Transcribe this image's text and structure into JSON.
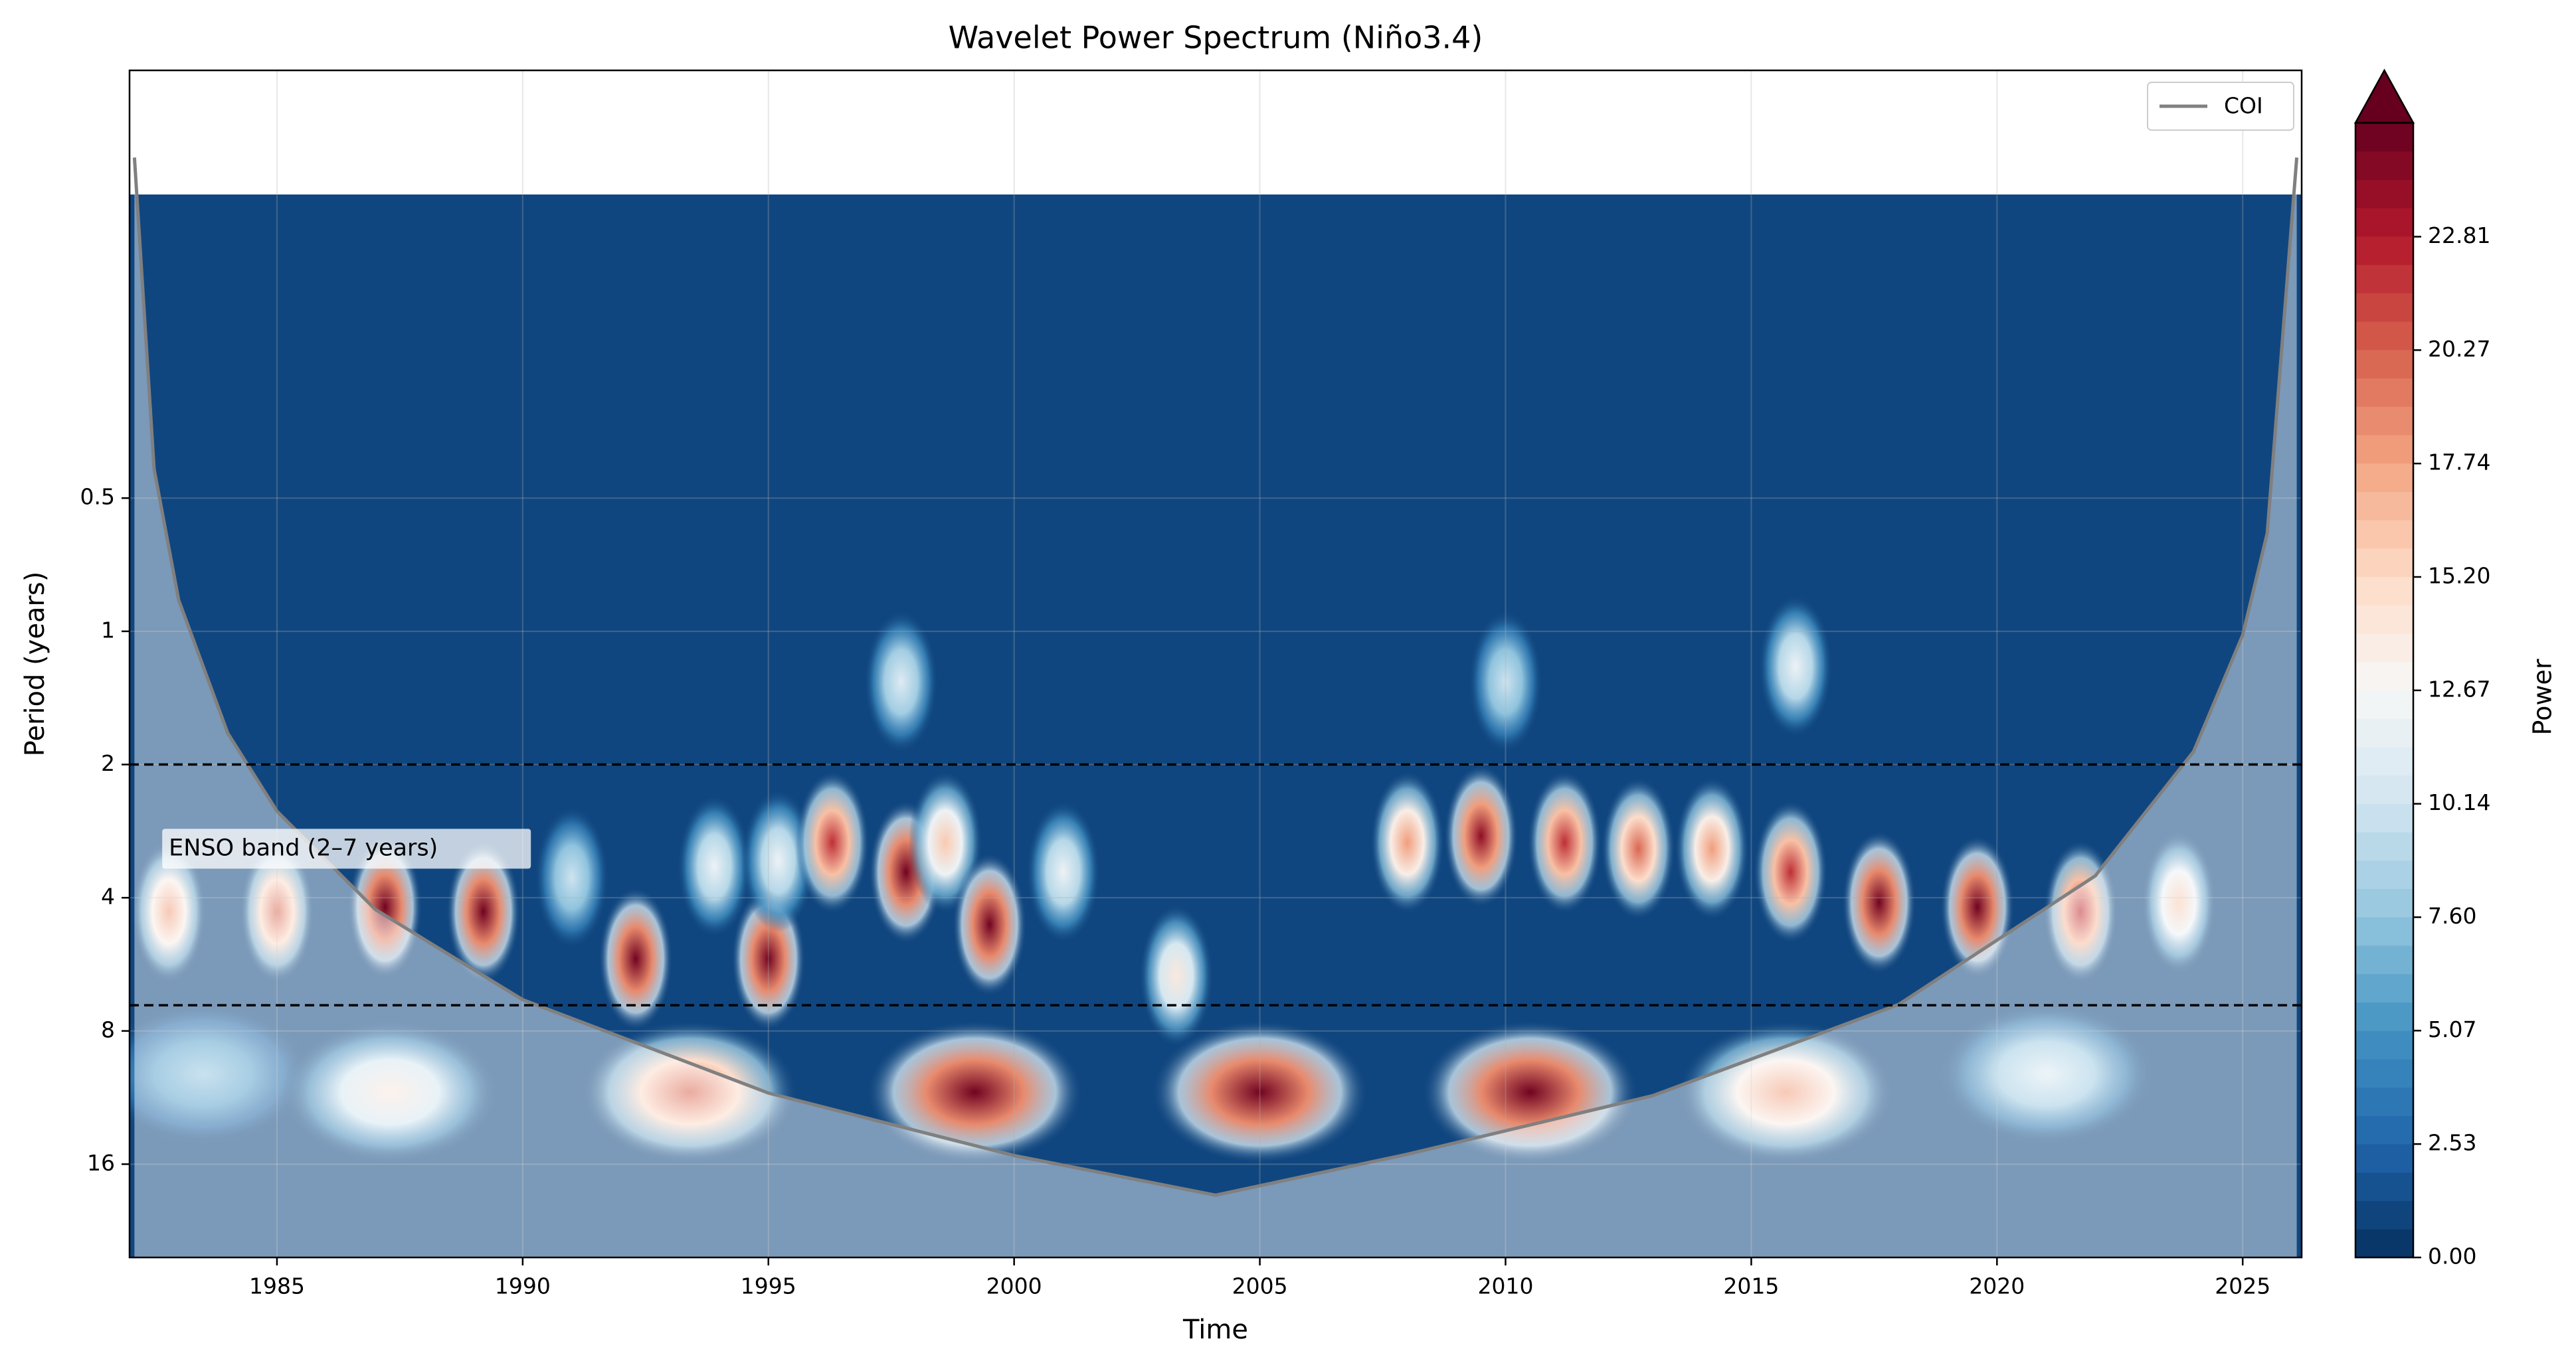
{
  "chart_data": {
    "type": "wavelet",
    "title": "Wavelet Power Spectrum (Niño3.4)",
    "x_label": "Time",
    "y_label": "Period (years)",
    "colorbar_label": "Power",
    "xlim": [
      1982.0,
      2026.2
    ],
    "xticks": [
      1985,
      1990,
      1995,
      2000,
      2005,
      2010,
      2015,
      2020,
      2025
    ],
    "ylim": [
      0.054,
      26
    ],
    "y_log": true,
    "y_inverted": true,
    "yticks": [
      0.5,
      1,
      2,
      4,
      8,
      16
    ],
    "grid": true,
    "heatmap_period_range": [
      0.103,
      26
    ],
    "clim": [
      0,
      25.35
    ],
    "levels": 40,
    "colorbar_extend": "max",
    "colormap": [
      "#053061",
      "#2166ac",
      "#4393c3",
      "#92c5de",
      "#d1e5f0",
      "#f7f7f7",
      "#fddbc7",
      "#f4a582",
      "#d6604d",
      "#b2182b",
      "#67001f"
    ],
    "cticks": [
      {
        "value": 0,
        "label": "0.00"
      },
      {
        "value": 2.534,
        "label": "2.53"
      },
      {
        "value": 5.068,
        "label": "5.07"
      },
      {
        "value": 7.602,
        "label": "7.60"
      },
      {
        "value": 10.136,
        "label": "10.14"
      },
      {
        "value": 12.67,
        "label": "12.67"
      },
      {
        "value": 15.204,
        "label": "15.20"
      },
      {
        "value": 17.738,
        "label": "17.74"
      },
      {
        "value": 20.272,
        "label": "20.27"
      },
      {
        "value": 22.806,
        "label": "22.81"
      }
    ],
    "peaks": {
      "x": [
        1982.8,
        1985,
        1987.2,
        1989.2,
        1991,
        1992.3,
        1993.9,
        1995,
        1995.2,
        1996.3,
        1997.8,
        1998.6,
        1999.5,
        2001,
        2003.3,
        2008,
        2009.5,
        2011.2,
        2012.7,
        2014.2,
        2015.8,
        2017.6,
        2019.6,
        2021.7,
        2023.7,
        1983.5,
        1987.3,
        1993.4,
        1999.2,
        2005,
        2010.5,
        2015.7,
        2021,
        1997.7,
        2015.9,
        2010
      ],
      "period": [
        4.3,
        4.3,
        4.2,
        4.3,
        3.6,
        5.5,
        3.4,
        5.5,
        3.3,
        3.0,
        3.5,
        3.0,
        4.6,
        3.5,
        6,
        3,
        2.9,
        3,
        3.1,
        3.1,
        3.5,
        4.1,
        4.2,
        4.3,
        4.1,
        10,
        11,
        11,
        11,
        11,
        11,
        11,
        10,
        1.3,
        1.2,
        1.3
      ],
      "power": [
        18,
        20,
        25,
        25,
        10,
        25,
        12,
        25,
        12,
        22,
        25,
        16,
        25,
        12,
        14,
        18,
        24,
        22,
        20,
        18,
        22,
        25,
        25,
        22,
        16,
        8,
        14,
        20,
        25,
        25,
        25,
        18,
        11,
        11,
        12,
        10
      ]
    },
    "coi": {
      "name": "COI",
      "color": "#808080",
      "x": [
        1982.1,
        1982.5,
        1983,
        1984,
        1985,
        1987,
        1990,
        1995,
        2000,
        2004.1,
        2008,
        2013,
        2018,
        2022,
        2024,
        2025,
        2025.5,
        2026.1
      ],
      "y": [
        0.085,
        0.43,
        0.85,
        1.7,
        2.55,
        4.25,
        6.8,
        11.05,
        15.3,
        18.8,
        15.2,
        11.2,
        6.97,
        3.57,
        1.87,
        1.02,
        0.6,
        0.085
      ]
    },
    "band_lines": [
      2,
      7
    ],
    "annotation": "ENSO band (2–7 years)",
    "annotation_x": 1982.8,
    "annotation_y": 3.1,
    "legend_loc": "upper right"
  }
}
